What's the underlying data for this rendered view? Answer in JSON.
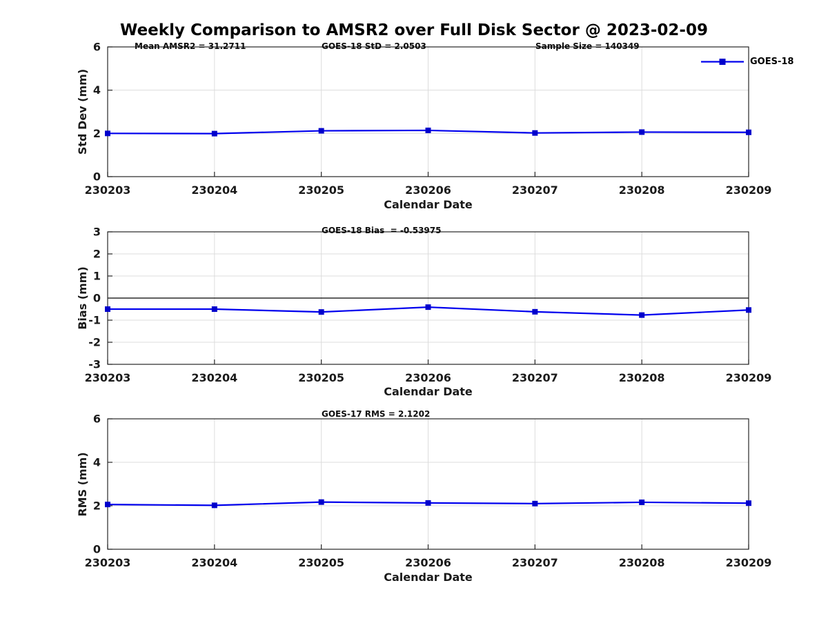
{
  "figure": {
    "title": "Weekly Comparison to AMSR2 over Full Disk Sector @ 2023-02-09"
  },
  "legend": {
    "label": "GOES-18"
  },
  "colors": {
    "line": "#0000ee",
    "marker": "#0000cc",
    "grid": "#dcdcdc",
    "axis": "#262626",
    "zero_line": "#000000",
    "text": "#1a1a1a",
    "background": "#ffffff"
  },
  "chart_data": [
    {
      "type": "line",
      "ylabel": "Std Dev (mm)",
      "xlabel": "Calendar Date",
      "categories": [
        "230203",
        "230204",
        "230205",
        "230206",
        "230207",
        "230208",
        "230209"
      ],
      "series": [
        {
          "name": "GOES-18",
          "values": [
            2.0,
            1.99,
            2.12,
            2.14,
            2.02,
            2.06,
            2.05
          ]
        }
      ],
      "ylim": [
        0,
        6
      ],
      "yticks": [
        0,
        2,
        4,
        6
      ],
      "grid": true,
      "zero_line": false,
      "legend_position": "top-right-outside",
      "annotations": [
        "Mean AMSR2 = 31.2711",
        "GOES-18 StD = 2.0503",
        "Sample Size = 140349"
      ]
    },
    {
      "type": "line",
      "ylabel": "Bias (mm)",
      "xlabel": "Calendar Date",
      "categories": [
        "230203",
        "230204",
        "230205",
        "230206",
        "230207",
        "230208",
        "230209"
      ],
      "series": [
        {
          "name": "GOES-18",
          "values": [
            -0.5,
            -0.5,
            -0.63,
            -0.41,
            -0.62,
            -0.77,
            -0.54
          ]
        }
      ],
      "ylim": [
        -3,
        3
      ],
      "yticks": [
        -3,
        -2,
        -1,
        0,
        1,
        2,
        3
      ],
      "grid": true,
      "zero_line": true,
      "annotations": [
        "GOES-18 Bias  = -0.53975"
      ]
    },
    {
      "type": "line",
      "ylabel": "RMS (mm)",
      "xlabel": "Calendar Date",
      "categories": [
        "230203",
        "230204",
        "230205",
        "230206",
        "230207",
        "230208",
        "230209"
      ],
      "series": [
        {
          "name": "GOES-18",
          "values": [
            2.06,
            2.02,
            2.17,
            2.13,
            2.1,
            2.16,
            2.12
          ]
        }
      ],
      "ylim": [
        0,
        6
      ],
      "yticks": [
        0,
        2,
        4,
        6
      ],
      "grid": true,
      "zero_line": false,
      "annotations": [
        "GOES-17 RMS = 2.1202"
      ]
    }
  ]
}
